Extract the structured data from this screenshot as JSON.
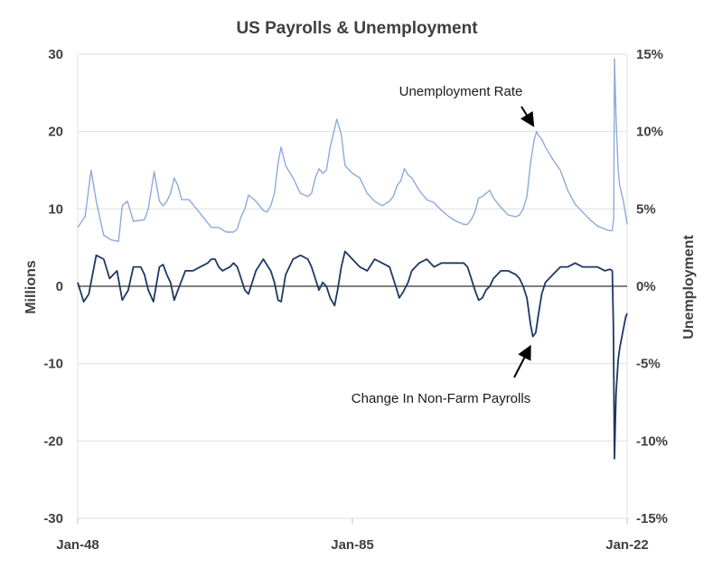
{
  "chart_data": {
    "type": "line",
    "title": "US Payrolls & Unemployment",
    "ylabel_left": "Millions",
    "ylabel_right": "Unemployment",
    "xlim": [
      1948.0,
      2022.0
    ],
    "ylim_left": [
      -30,
      30
    ],
    "ylim_right": [
      -15,
      15
    ],
    "x_ticks": [
      {
        "x": 1948.0,
        "label": "Jan-48"
      },
      {
        "x": 1985.0,
        "label": "Jan-85"
      },
      {
        "x": 2022.0,
        "label": "Jan-22"
      }
    ],
    "left_ticks": [
      {
        "v": 30,
        "label": "30"
      },
      {
        "v": 20,
        "label": "20"
      },
      {
        "v": 10,
        "label": "10"
      },
      {
        "v": 0,
        "label": "0"
      },
      {
        "v": -10,
        "label": "-10"
      },
      {
        "v": -20,
        "label": "-20"
      },
      {
        "v": -30,
        "label": "-30"
      }
    ],
    "right_ticks": [
      {
        "v": 15,
        "label": "15%"
      },
      {
        "v": 10,
        "label": "10%"
      },
      {
        "v": 5,
        "label": "5%"
      },
      {
        "v": 0,
        "label": "0%"
      },
      {
        "v": -5,
        "label": "-5%"
      },
      {
        "v": -10,
        "label": "-10%"
      },
      {
        "v": -15,
        "label": "-15%"
      }
    ],
    "grid": "horizontal",
    "colors": {
      "unemployment": "#8eaadb",
      "payrolls": "#1f3864",
      "zero_line": "#000000",
      "grid": "#e0e0e0"
    },
    "annotations": [
      {
        "text": "Unemployment Rate",
        "x": 2006.0,
        "y_right": 12.6
      },
      {
        "text": "Change In Non-Farm Payrolls",
        "x": 2006.0,
        "y_left": -14.5
      }
    ],
    "series": [
      {
        "name": "Unemployment Rate",
        "axis": "right",
        "x": [
          1948.0,
          1949.0,
          1949.8,
          1950.5,
          1951.5,
          1952.5,
          1953.5,
          1954.0,
          1954.7,
          1955.5,
          1957.0,
          1957.5,
          1958.3,
          1959.0,
          1959.5,
          1960.0,
          1960.5,
          1961.0,
          1961.5,
          1962.0,
          1963.0,
          1964.0,
          1965.0,
          1966.0,
          1967.0,
          1968.0,
          1969.0,
          1969.5,
          1970.0,
          1970.5,
          1971.0,
          1972.0,
          1973.0,
          1973.5,
          1974.0,
          1974.5,
          1975.0,
          1975.4,
          1976.0,
          1977.0,
          1978.0,
          1979.0,
          1979.5,
          1980.0,
          1980.5,
          1981.0,
          1981.5,
          1982.0,
          1982.5,
          1982.9,
          1983.5,
          1984.0,
          1985.0,
          1986.0,
          1987.0,
          1988.0,
          1989.0,
          1990.0,
          1990.5,
          1991.0,
          1991.5,
          1992.0,
          1992.5,
          1993.0,
          1994.0,
          1995.0,
          1996.0,
          1997.0,
          1998.0,
          1999.0,
          2000.0,
          2000.5,
          2001.0,
          2001.5,
          2002.0,
          2002.5,
          2003.0,
          2003.5,
          2004.0,
          2005.0,
          2006.0,
          2007.0,
          2007.5,
          2008.0,
          2008.5,
          2009.0,
          2009.5,
          2009.8,
          2010.0,
          2010.5,
          2011.0,
          2012.0,
          2013.0,
          2014.0,
          2015.0,
          2016.0,
          2017.0,
          2018.0,
          2019.0,
          2019.5,
          2020.0,
          2020.2,
          2020.3,
          2020.5,
          2020.8,
          2021.0,
          2021.5,
          2021.8,
          2022.0
        ],
        "y": [
          3.8,
          4.5,
          7.5,
          5.5,
          3.3,
          3.0,
          2.9,
          5.2,
          5.5,
          4.2,
          4.3,
          5.0,
          7.4,
          5.5,
          5.2,
          5.5,
          6.0,
          7.0,
          6.5,
          5.6,
          5.6,
          5.0,
          4.4,
          3.8,
          3.8,
          3.5,
          3.5,
          3.7,
          4.5,
          5.0,
          5.9,
          5.5,
          4.9,
          4.8,
          5.2,
          6.0,
          8.0,
          9.0,
          7.8,
          7.0,
          6.0,
          5.8,
          6.0,
          7.0,
          7.6,
          7.3,
          7.5,
          9.0,
          10.0,
          10.8,
          9.8,
          7.8,
          7.3,
          7.0,
          6.0,
          5.5,
          5.2,
          5.5,
          5.8,
          6.5,
          6.8,
          7.6,
          7.2,
          7.0,
          6.2,
          5.6,
          5.4,
          4.9,
          4.5,
          4.2,
          4.0,
          4.0,
          4.3,
          4.8,
          5.7,
          5.8,
          6.0,
          6.2,
          5.7,
          5.1,
          4.6,
          4.5,
          4.6,
          5.0,
          5.8,
          8.0,
          9.5,
          10.0,
          9.8,
          9.5,
          9.0,
          8.2,
          7.5,
          6.2,
          5.3,
          4.8,
          4.3,
          3.9,
          3.7,
          3.6,
          3.6,
          4.4,
          14.7,
          11.0,
          7.5,
          6.5,
          5.5,
          4.6,
          4.0
        ]
      },
      {
        "name": "Change In Non-Farm Payrolls",
        "axis": "left",
        "x": [
          1948.0,
          1948.8,
          1949.5,
          1950.5,
          1951.5,
          1952.3,
          1953.3,
          1954.0,
          1954.8,
          1955.5,
          1956.5,
          1957.0,
          1957.5,
          1958.2,
          1959.0,
          1959.5,
          1960.0,
          1960.5,
          1961.0,
          1961.5,
          1962.5,
          1963.5,
          1964.5,
          1965.5,
          1966.0,
          1966.5,
          1967.0,
          1967.5,
          1968.5,
          1969.0,
          1969.5,
          1970.0,
          1970.5,
          1971.0,
          1972.0,
          1973.0,
          1974.0,
          1974.5,
          1975.0,
          1975.4,
          1976.0,
          1977.0,
          1978.0,
          1979.0,
          1979.5,
          1980.0,
          1980.5,
          1981.0,
          1981.5,
          1982.0,
          1982.6,
          1983.0,
          1983.5,
          1984.0,
          1985.0,
          1986.0,
          1987.0,
          1988.0,
          1989.0,
          1990.0,
          1990.5,
          1991.0,
          1991.3,
          1991.8,
          1992.5,
          1993.0,
          1994.0,
          1995.0,
          1996.0,
          1997.0,
          1998.0,
          1999.0,
          2000.0,
          2000.5,
          2001.0,
          2001.5,
          2002.0,
          2002.5,
          2003.0,
          2003.5,
          2004.0,
          2005.0,
          2006.0,
          2007.0,
          2007.5,
          2008.0,
          2008.5,
          2009.0,
          2009.3,
          2009.7,
          2010.0,
          2010.5,
          2011.0,
          2012.0,
          2013.0,
          2014.0,
          2015.0,
          2016.0,
          2017.0,
          2018.0,
          2019.0,
          2019.7,
          2020.0,
          2020.15,
          2020.3,
          2020.5,
          2020.8,
          2021.0,
          2021.5,
          2021.8,
          2022.0
        ],
        "y": [
          0.5,
          -2.0,
          -1.0,
          4.0,
          3.5,
          1.0,
          2.0,
          -1.8,
          -0.5,
          2.5,
          2.5,
          1.5,
          -0.5,
          -2.0,
          2.5,
          2.8,
          1.5,
          0.5,
          -1.8,
          -0.5,
          2.0,
          2.0,
          2.5,
          3.0,
          3.5,
          3.5,
          2.5,
          2.0,
          2.5,
          3.0,
          2.5,
          1.0,
          -0.5,
          -1.0,
          2.0,
          3.5,
          2.0,
          0.5,
          -1.8,
          -2.0,
          1.5,
          3.5,
          4.0,
          3.5,
          2.5,
          1.0,
          -0.5,
          0.5,
          0.0,
          -1.5,
          -2.5,
          -0.5,
          2.5,
          4.5,
          3.5,
          2.5,
          2.0,
          3.5,
          3.0,
          2.5,
          1.0,
          -0.5,
          -1.5,
          -0.8,
          0.5,
          2.0,
          3.0,
          3.5,
          2.5,
          3.0,
          3.0,
          3.0,
          3.0,
          2.5,
          1.0,
          -0.5,
          -1.8,
          -1.5,
          -0.5,
          0.0,
          1.0,
          2.0,
          2.0,
          1.5,
          1.0,
          0.0,
          -1.5,
          -5.0,
          -6.5,
          -6.0,
          -4.0,
          -1.0,
          0.5,
          1.5,
          2.5,
          2.5,
          3.0,
          2.5,
          2.5,
          2.5,
          2.0,
          2.2,
          2.0,
          -5.0,
          -22.3,
          -14.0,
          -9.5,
          -8.0,
          -5.5,
          -4.0,
          -3.5
        ]
      }
    ]
  }
}
